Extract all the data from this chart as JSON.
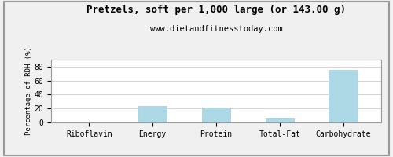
{
  "title": "Pretzels, soft per 1,000 large (or 143.00 g)",
  "subtitle": "www.dietandfitnesstoday.com",
  "categories": [
    "Riboflavin",
    "Energy",
    "Protein",
    "Total-Fat",
    "Carbohydrate"
  ],
  "values": [
    0.5,
    24.0,
    21.5,
    7.0,
    75.5
  ],
  "bar_color": "#add8e6",
  "bar_edge_color": "#aac8d8",
  "ylabel": "Percentage of RDH (%)",
  "ylim": [
    0,
    90
  ],
  "yticks": [
    0,
    20,
    40,
    60,
    80
  ],
  "background_color": "#f0f0f0",
  "plot_bg_color": "#ffffff",
  "grid_color": "#cccccc",
  "title_fontsize": 9,
  "subtitle_fontsize": 7.5,
  "axis_label_fontsize": 6.5,
  "tick_fontsize": 7,
  "border_color": "#999999"
}
